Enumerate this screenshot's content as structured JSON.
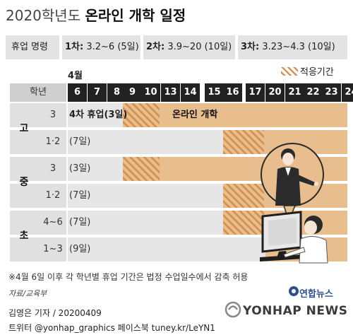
{
  "header": {
    "title_light": "2020학년도",
    "title_bold": "온라인 개학 일정"
  },
  "legend_bar": {
    "label": "휴업 명령",
    "phase1_name": "1차:",
    "phase1_value": "3.2~6 (5일)",
    "phase2_name": "2차:",
    "phase2_value": "3.9~20 (10일)",
    "phase3_name": "3차:",
    "phase3_value": "3.23~4.3 (10일)"
  },
  "legend_key": {
    "label": "적응기간"
  },
  "chart_data": {
    "type": "table",
    "month_label": "4월",
    "grade_header": "학년",
    "days": [
      "6",
      "7",
      "8",
      "9",
      "10",
      "13",
      "14",
      "15",
      "16",
      "17",
      "20",
      "21",
      "22",
      "23",
      "24"
    ],
    "rows": [
      {
        "level": "고",
        "grade": "3",
        "break_label": "4차 휴업(3일)",
        "break_days": 3,
        "adaptation_start_day": "9",
        "adaptation_end_day": "10",
        "online_start_day": "9",
        "online_label": "온라인 개학"
      },
      {
        "level": "",
        "grade": "1·2",
        "break_label": "(7일)",
        "break_days": 7,
        "adaptation_start_day": "16",
        "adaptation_end_day": "17",
        "online_start_day": "16",
        "online_label": ""
      },
      {
        "level": "중",
        "grade": "3",
        "break_label": "(3일)",
        "break_days": 3,
        "adaptation_start_day": "9",
        "adaptation_end_day": "10",
        "online_start_day": "9",
        "online_label": ""
      },
      {
        "level": "",
        "grade": "1·2",
        "break_label": "(7일)",
        "break_days": 7,
        "adaptation_start_day": "16",
        "adaptation_end_day": "17",
        "online_start_day": "16",
        "online_label": ""
      },
      {
        "level": "초",
        "grade": "4~6",
        "break_label": "(7일)",
        "break_days": 7,
        "adaptation_start_day": "16",
        "adaptation_end_day": "17",
        "online_start_day": "16",
        "online_label": ""
      },
      {
        "level": "",
        "grade": "1~3",
        "break_label": "(9일)",
        "break_days": 9,
        "adaptation_start_day": "",
        "adaptation_end_day": "",
        "online_start_day": "20",
        "online_label": ""
      }
    ],
    "colors": {
      "online": "#e9be8e",
      "break": "#e6e6e6",
      "hatch": "#d38f4d",
      "day_header": "#222222",
      "row_label": "#e0e0e0"
    }
  },
  "footnote": "※4월 6일 이후 각 학년별 휴업 기간은 법정 수업일수에서 감축 허용",
  "source": "자료/교육부",
  "credit": {
    "reporter": "김영은 기자 / 20200409",
    "social": "트위터 @yonhap_graphics  페이스북 tuney.kr/LeYN1"
  },
  "brand": {
    "ko": "연합뉴스",
    "en": "YONHAP NEWS"
  },
  "icons": [
    "teacher-illustration",
    "student-at-computer-illustration",
    "yonhap-logo-icon"
  ]
}
